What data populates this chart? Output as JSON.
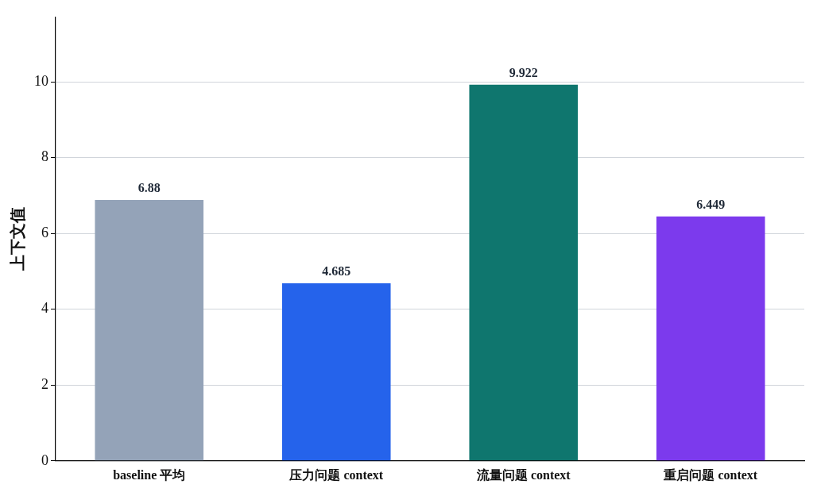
{
  "chart_data": {
    "type": "bar",
    "ylabel": "上下文值",
    "categories": [
      "baseline 平均",
      "压力问题 context",
      "流量问题 context",
      "重启问题 context"
    ],
    "values": [
      6.88,
      4.685,
      9.922,
      6.449
    ],
    "colors": [
      "#94a3b8",
      "#2563eb",
      "#0f766e",
      "#7c3aed"
    ],
    "ylim": [
      0,
      11.7
    ],
    "yticks": [
      0,
      2,
      4,
      6,
      8,
      10
    ],
    "grid": "y",
    "data_labels": true,
    "legend": false
  }
}
